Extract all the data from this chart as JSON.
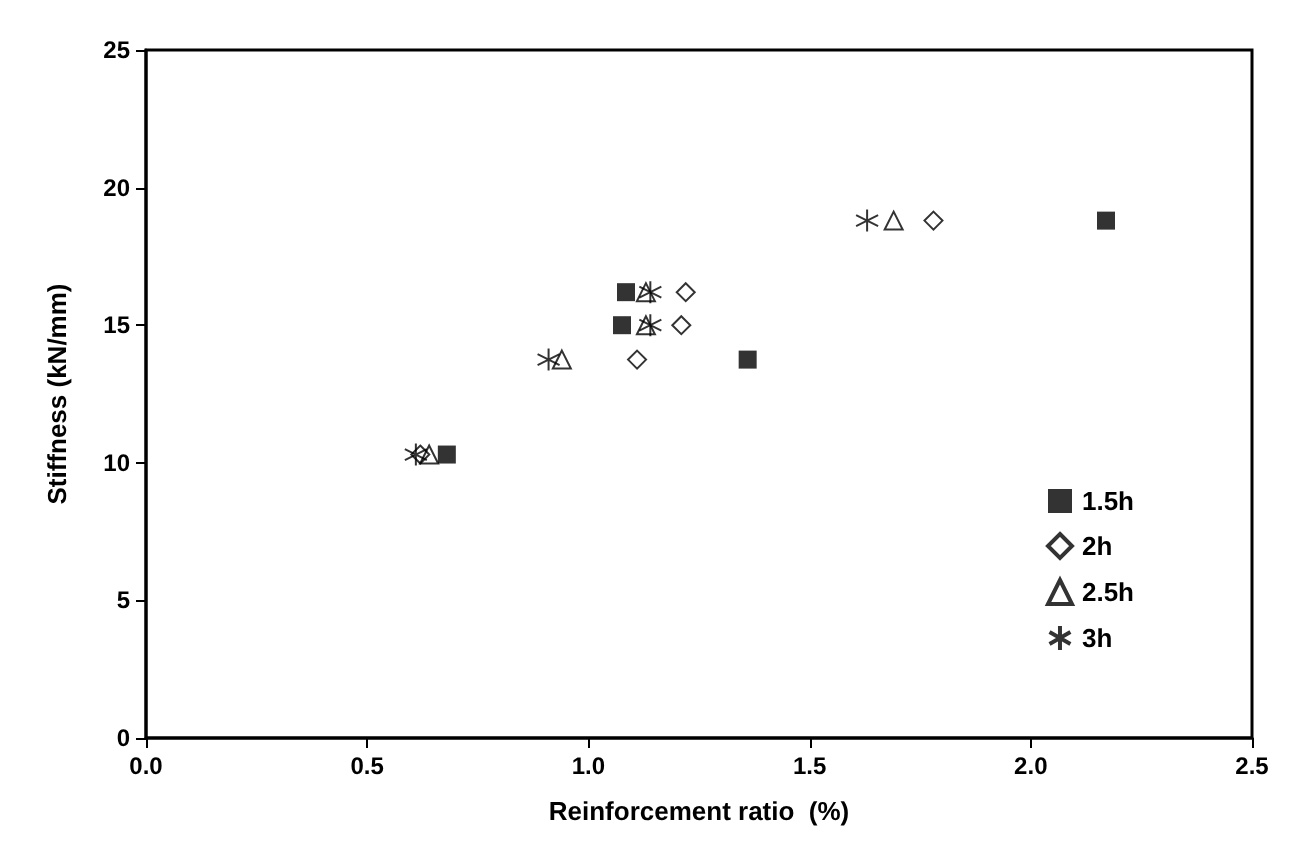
{
  "chart_data": {
    "type": "scatter",
    "xlabel": "Reinforcement ratio  (%)",
    "ylabel": "Stiffness (kN/mm)",
    "xlim": [
      0,
      2.5
    ],
    "ylim": [
      0,
      25
    ],
    "xticks": [
      {
        "value": 0,
        "label": "0.0"
      },
      {
        "value": 0.5,
        "label": "0.5"
      },
      {
        "value": 1,
        "label": "1.0"
      },
      {
        "value": 1.5,
        "label": "1.5"
      },
      {
        "value": 2,
        "label": "2.0"
      },
      {
        "value": 2.5,
        "label": "2.5"
      }
    ],
    "yticks": [
      0,
      5,
      10,
      15,
      20,
      25
    ],
    "grid": false,
    "legend": "bottom right",
    "series": [
      {
        "name": "1.5h",
        "color": "#000000",
        "marker": "square",
        "x": [
          0.68,
          1.085,
          1.076,
          1.36,
          2.17
        ],
        "values": [
          10.3,
          16.2,
          15.0,
          13.75,
          18.8
        ]
      },
      {
        "name": "2h",
        "color": "#000000",
        "marker": "diamond",
        "x": [
          0.62,
          1.22,
          1.21,
          1.11,
          1.78
        ],
        "values": [
          10.3,
          16.2,
          15.0,
          13.75,
          18.8
        ]
      },
      {
        "name": "2.5h",
        "color": "#000000",
        "marker": "triangle",
        "x": [
          0.64,
          1.13,
          1.13,
          0.94,
          1.69
        ],
        "values": [
          10.3,
          16.2,
          15.0,
          13.75,
          18.8
        ]
      },
      {
        "name": "3h",
        "color": "#000000",
        "marker": "cross",
        "x": [
          0.61,
          1.14,
          1.14,
          0.91,
          1.63
        ],
        "values": [
          10.3,
          16.2,
          15.0,
          13.75,
          18.8
        ]
      }
    ]
  }
}
